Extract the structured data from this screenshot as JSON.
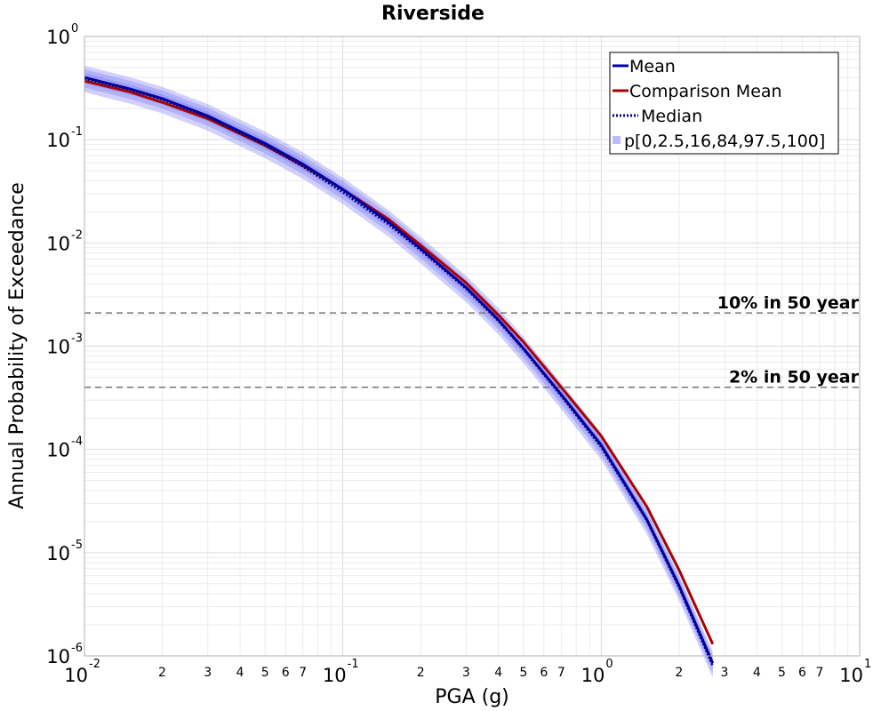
{
  "chart_data": {
    "type": "line",
    "title": "Riverside",
    "xlabel": "PGA (g)",
    "ylabel": "Annual Probability of Exceedance",
    "x_scale": "log",
    "y_scale": "log",
    "xlim": [
      0.01,
      10
    ],
    "ylim": [
      1e-06,
      1
    ],
    "grid": true,
    "legend_position": "top-right",
    "x_major_ticks": [
      {
        "base": "10",
        "exp": "-2"
      },
      {
        "base": "10",
        "exp": "-1"
      },
      {
        "base": "10",
        "exp": "0"
      },
      {
        "base": "10",
        "exp": "1"
      }
    ],
    "x_minor_tick_labels": [
      "2",
      "3",
      "4",
      "5",
      "6",
      "7"
    ],
    "y_major_ticks": [
      {
        "base": "10",
        "exp": "0"
      },
      {
        "base": "10",
        "exp": "-1"
      },
      {
        "base": "10",
        "exp": "-2"
      },
      {
        "base": "10",
        "exp": "-3"
      },
      {
        "base": "10",
        "exp": "-4"
      },
      {
        "base": "10",
        "exp": "-5"
      },
      {
        "base": "10",
        "exp": "-6"
      }
    ],
    "x": [
      0.01,
      0.015,
      0.02,
      0.03,
      0.05,
      0.07,
      0.1,
      0.15,
      0.2,
      0.3,
      0.4,
      0.5,
      0.7,
      1.0,
      1.5,
      2.0,
      2.7
    ],
    "series": [
      {
        "name": "Mean",
        "color": "#0000aa",
        "style": "solid",
        "values": [
          0.4,
          0.31,
          0.25,
          0.17,
          0.092,
          0.058,
          0.033,
          0.016,
          0.0088,
          0.0037,
          0.0018,
          0.00095,
          0.00034,
          0.00011,
          2.1e-05,
          4.8e-06,
          8.5e-07
        ]
      },
      {
        "name": "Comparison Mean",
        "color": "#aa0000",
        "style": "solid",
        "values": [
          0.37,
          0.29,
          0.23,
          0.16,
          0.088,
          0.056,
          0.033,
          0.017,
          0.0095,
          0.0041,
          0.002,
          0.0011,
          0.0004,
          0.000135,
          2.8e-05,
          6.8e-06,
          1.3e-06
        ]
      },
      {
        "name": "Median",
        "color": "#000080",
        "style": "dotted",
        "values": [
          0.39,
          0.305,
          0.245,
          0.165,
          0.088,
          0.055,
          0.031,
          0.0152,
          0.0085,
          0.0036,
          0.00175,
          0.00093,
          0.00033,
          0.000105,
          2.05e-05,
          4.6e-06,
          8e-07
        ]
      }
    ],
    "percentile_band": {
      "name": "p[0,2.5,16,84,97.5,100]",
      "color": "#7070f5",
      "outer_low_factor": 0.72,
      "outer_high_factor": 1.3,
      "mid_low_factor": 0.8,
      "mid_high_factor": 1.2,
      "inner_low_factor": 0.88,
      "inner_high_factor": 1.1
    },
    "reference_lines": [
      {
        "label": "10% in 50 year",
        "y": 0.0021
      },
      {
        "label": "2% in 50 year",
        "y": 0.0004
      }
    ]
  }
}
